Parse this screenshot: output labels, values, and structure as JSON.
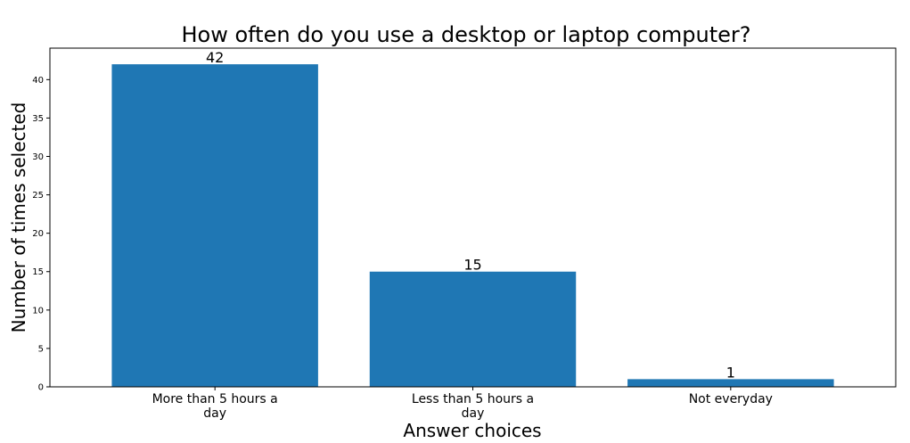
{
  "chart_data": {
    "type": "bar",
    "title": "How often do you use a desktop or laptop computer?",
    "xlabel": "Answer choices",
    "ylabel": "Number of times selected",
    "categories": [
      "More than 5 hours a day",
      "Less than 5 hours a day",
      "Not everyday"
    ],
    "category_lines": [
      [
        "More than 5 hours a",
        "day"
      ],
      [
        "Less than 5 hours a",
        "day"
      ],
      [
        "Not everyday"
      ]
    ],
    "values": [
      42,
      15,
      1
    ],
    "data_labels": [
      "42",
      "15",
      "1"
    ],
    "ylim": [
      0,
      44.1
    ],
    "yticks": [
      0,
      5,
      10,
      15,
      20,
      25,
      30,
      35,
      40
    ],
    "bar_color": "#1f77b4",
    "grid": false,
    "legend": "none"
  }
}
